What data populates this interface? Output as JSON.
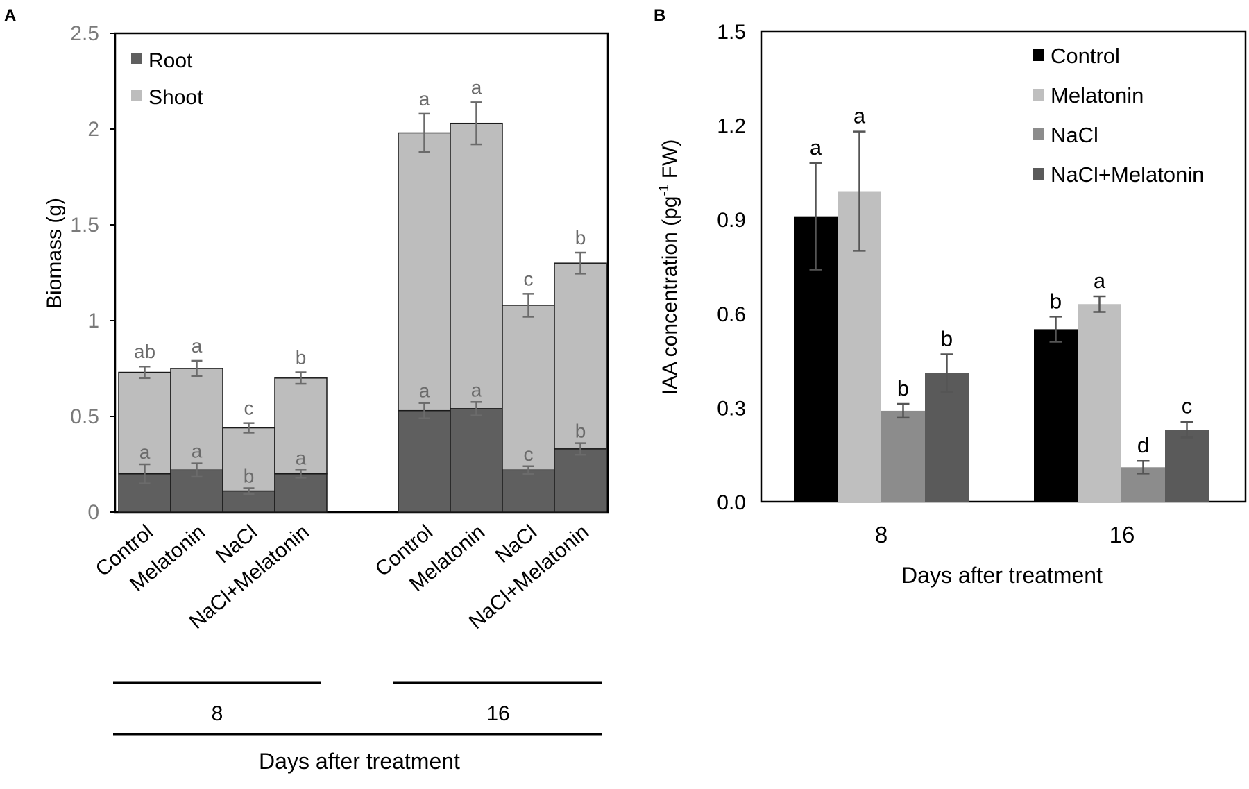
{
  "chart_data": [
    {
      "panel": "A",
      "type": "bar",
      "stacked": true,
      "ylabel": "Biomass (g)",
      "xlabel": "Days after treatment",
      "ylim": [
        0,
        2.5
      ],
      "yticks": [
        "0",
        "0.5",
        "1",
        "1.5",
        "2",
        "2.5"
      ],
      "ytick_values": [
        0,
        0.5,
        1,
        1.5,
        2,
        2.5
      ],
      "groups": [
        "8",
        "16"
      ],
      "categories": [
        "Control",
        "Melatonin",
        "NaCl",
        "NaCl+Melatonin"
      ],
      "legend": [
        "Root",
        "Shoot"
      ],
      "legend_position": "top-left",
      "colors": {
        "root": "#5f5f5f",
        "shoot": "#bdbdbd",
        "error": "#6b6b6b",
        "letters": "#6b6b6b",
        "axis": "#000000"
      },
      "series": [
        {
          "name": "Root",
          "values": [
            [
              0.2,
              0.22,
              0.11,
              0.2
            ],
            [
              0.53,
              0.54,
              0.22,
              0.33
            ]
          ],
          "errors": [
            [
              0.05,
              0.035,
              0.015,
              0.02
            ],
            [
              0.04,
              0.035,
              0.02,
              0.03
            ]
          ],
          "letters": [
            [
              "a",
              "a",
              "b",
              "a"
            ],
            [
              "a",
              "a",
              "c",
              "b"
            ]
          ]
        },
        {
          "name": "Shoot",
          "totals": [
            [
              0.73,
              0.75,
              0.44,
              0.7
            ],
            [
              1.98,
              2.03,
              1.08,
              1.3
            ]
          ],
          "errors": [
            [
              0.03,
              0.04,
              0.025,
              0.03
            ],
            [
              0.1,
              0.11,
              0.06,
              0.055
            ]
          ],
          "letters": [
            [
              "ab",
              "a",
              "c",
              "b"
            ],
            [
              "a",
              "a",
              "c",
              "b"
            ]
          ]
        }
      ]
    },
    {
      "panel": "B",
      "type": "bar",
      "ylabel": "IAA concentration (pg",
      "ylabel_sup": "-1",
      "ylabel_tail": " FW)",
      "xlabel": "Days after treatment",
      "ylim": [
        0,
        1.5
      ],
      "yticks": [
        "0.0",
        "0.3",
        "0.6",
        "0.9",
        "1.2",
        "1.5"
      ],
      "ytick_values": [
        0,
        0.3,
        0.6,
        0.9,
        1.2,
        1.5
      ],
      "categories": [
        "8",
        "16"
      ],
      "legend_position": "top-right",
      "series": [
        {
          "name": "Control",
          "color": "#000000",
          "values": [
            0.91,
            0.55
          ],
          "errors": [
            0.17,
            0.04
          ],
          "letters": [
            "a",
            "b"
          ]
        },
        {
          "name": "Melatonin",
          "color": "#bfbfbf",
          "values": [
            0.99,
            0.63
          ],
          "errors": [
            0.19,
            0.025
          ],
          "letters": [
            "a",
            "a"
          ]
        },
        {
          "name": "NaCl",
          "color": "#8c8c8c",
          "values": [
            0.29,
            0.11
          ],
          "errors": [
            0.022,
            0.02
          ],
          "letters": [
            "b",
            "d"
          ]
        },
        {
          "name": "NaCl+Melatonin",
          "color": "#5a5a5a",
          "values": [
            0.41,
            0.23
          ],
          "errors": [
            0.06,
            0.025
          ],
          "letters": [
            "b",
            "c"
          ]
        }
      ],
      "colors": {
        "error": "#555555",
        "letters": "#000000",
        "axis": "#000000",
        "frame": "#000000"
      }
    }
  ],
  "panel_labels": [
    "A",
    "B"
  ]
}
